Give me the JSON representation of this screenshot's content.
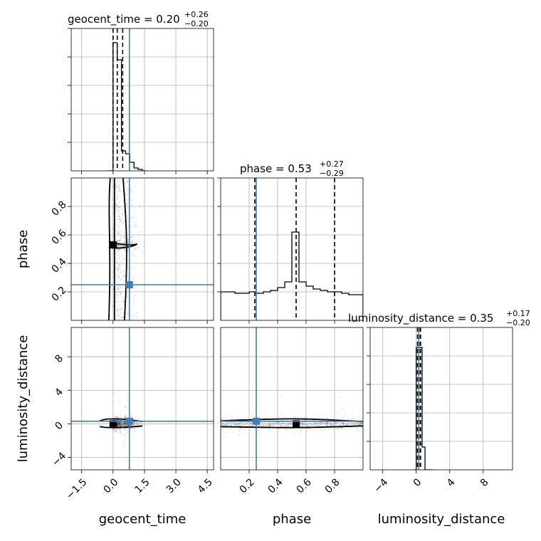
{
  "chart_data": {
    "type": "corner",
    "parameters": [
      "geocent_time",
      "phase",
      "luminosity_distance"
    ],
    "axis_labels": {
      "geocent_time": "geocent_time",
      "phase": "phase",
      "luminosity_distance": "luminosity_distance"
    },
    "ranges": {
      "geocent_time": [
        -2.0,
        4.8
      ],
      "phase": [
        0.0,
        1.0
      ],
      "luminosity_distance": [
        -5.5,
        11.5
      ]
    },
    "ticks": {
      "geocent_time": [
        -1.5,
        0.0,
        1.5,
        3.0,
        4.5
      ],
      "phase": [
        0.2,
        0.4,
        0.6,
        0.8
      ],
      "luminosity_distance": [
        -4,
        0,
        4,
        8
      ]
    },
    "tick_labels": {
      "geocent_time": [
        "−1.5",
        "0.0",
        "1.5",
        "3.0",
        "4.5"
      ],
      "phase": [
        "0.2",
        "0.4",
        "0.6",
        "0.8"
      ],
      "luminosity_distance": [
        "−4",
        "0",
        "4",
        "8"
      ]
    },
    "titles": {
      "geocent_time": {
        "label": "geocent_time",
        "median": "0.20",
        "plus": "+0.26",
        "minus": "−0.20"
      },
      "phase": {
        "label": "phase",
        "median": "0.53",
        "plus": "+0.27",
        "minus": "−0.29"
      },
      "luminosity_distance": {
        "label": "luminosity_distance",
        "median": "0.35",
        "plus": "+0.17",
        "minus": "−0.20"
      }
    },
    "quantiles": {
      "geocent_time": [
        0.0,
        0.2,
        0.46
      ],
      "phase": [
        0.24,
        0.53,
        0.8
      ],
      "luminosity_distance": [
        0.15,
        0.35,
        0.52
      ]
    },
    "truths": {
      "geocent_time": 0.78,
      "phase": 0.25,
      "luminosity_distance": 0.3
    },
    "histograms": {
      "geocent_time": {
        "edges": [
          -0.2,
          0.0,
          0.2,
          0.4,
          0.6,
          0.8,
          1.0,
          1.2,
          1.4,
          1.6
        ],
        "counts": [
          0.0,
          0.9,
          0.78,
          0.14,
          0.12,
          0.06,
          0.02,
          0.01,
          0.0
        ]
      },
      "phase": {
        "edges": [
          0.0,
          0.1,
          0.2,
          0.25,
          0.3,
          0.35,
          0.4,
          0.45,
          0.5,
          0.55,
          0.6,
          0.65,
          0.7,
          0.75,
          0.8,
          0.85,
          0.9,
          1.0
        ],
        "counts": [
          0.2,
          0.19,
          0.2,
          0.19,
          0.2,
          0.21,
          0.23,
          0.27,
          0.62,
          0.27,
          0.24,
          0.22,
          0.21,
          0.2,
          0.2,
          0.19,
          0.18
        ]
      },
      "luminosity_distance": {
        "edges": [
          -0.3,
          0.0,
          0.35,
          0.7,
          1.05,
          1.4,
          2.0
        ],
        "counts": [
          0.0,
          0.86,
          0.86,
          0.16,
          0.0,
          0.0
        ]
      }
    },
    "peaks_2d": {
      "phase_vs_geocent_time": [
        0.0,
        0.53
      ],
      "luminosity_distance_vs_geocent_time": [
        0.0,
        0.0
      ],
      "luminosity_distance_vs_phase": [
        0.53,
        0.0
      ]
    }
  }
}
